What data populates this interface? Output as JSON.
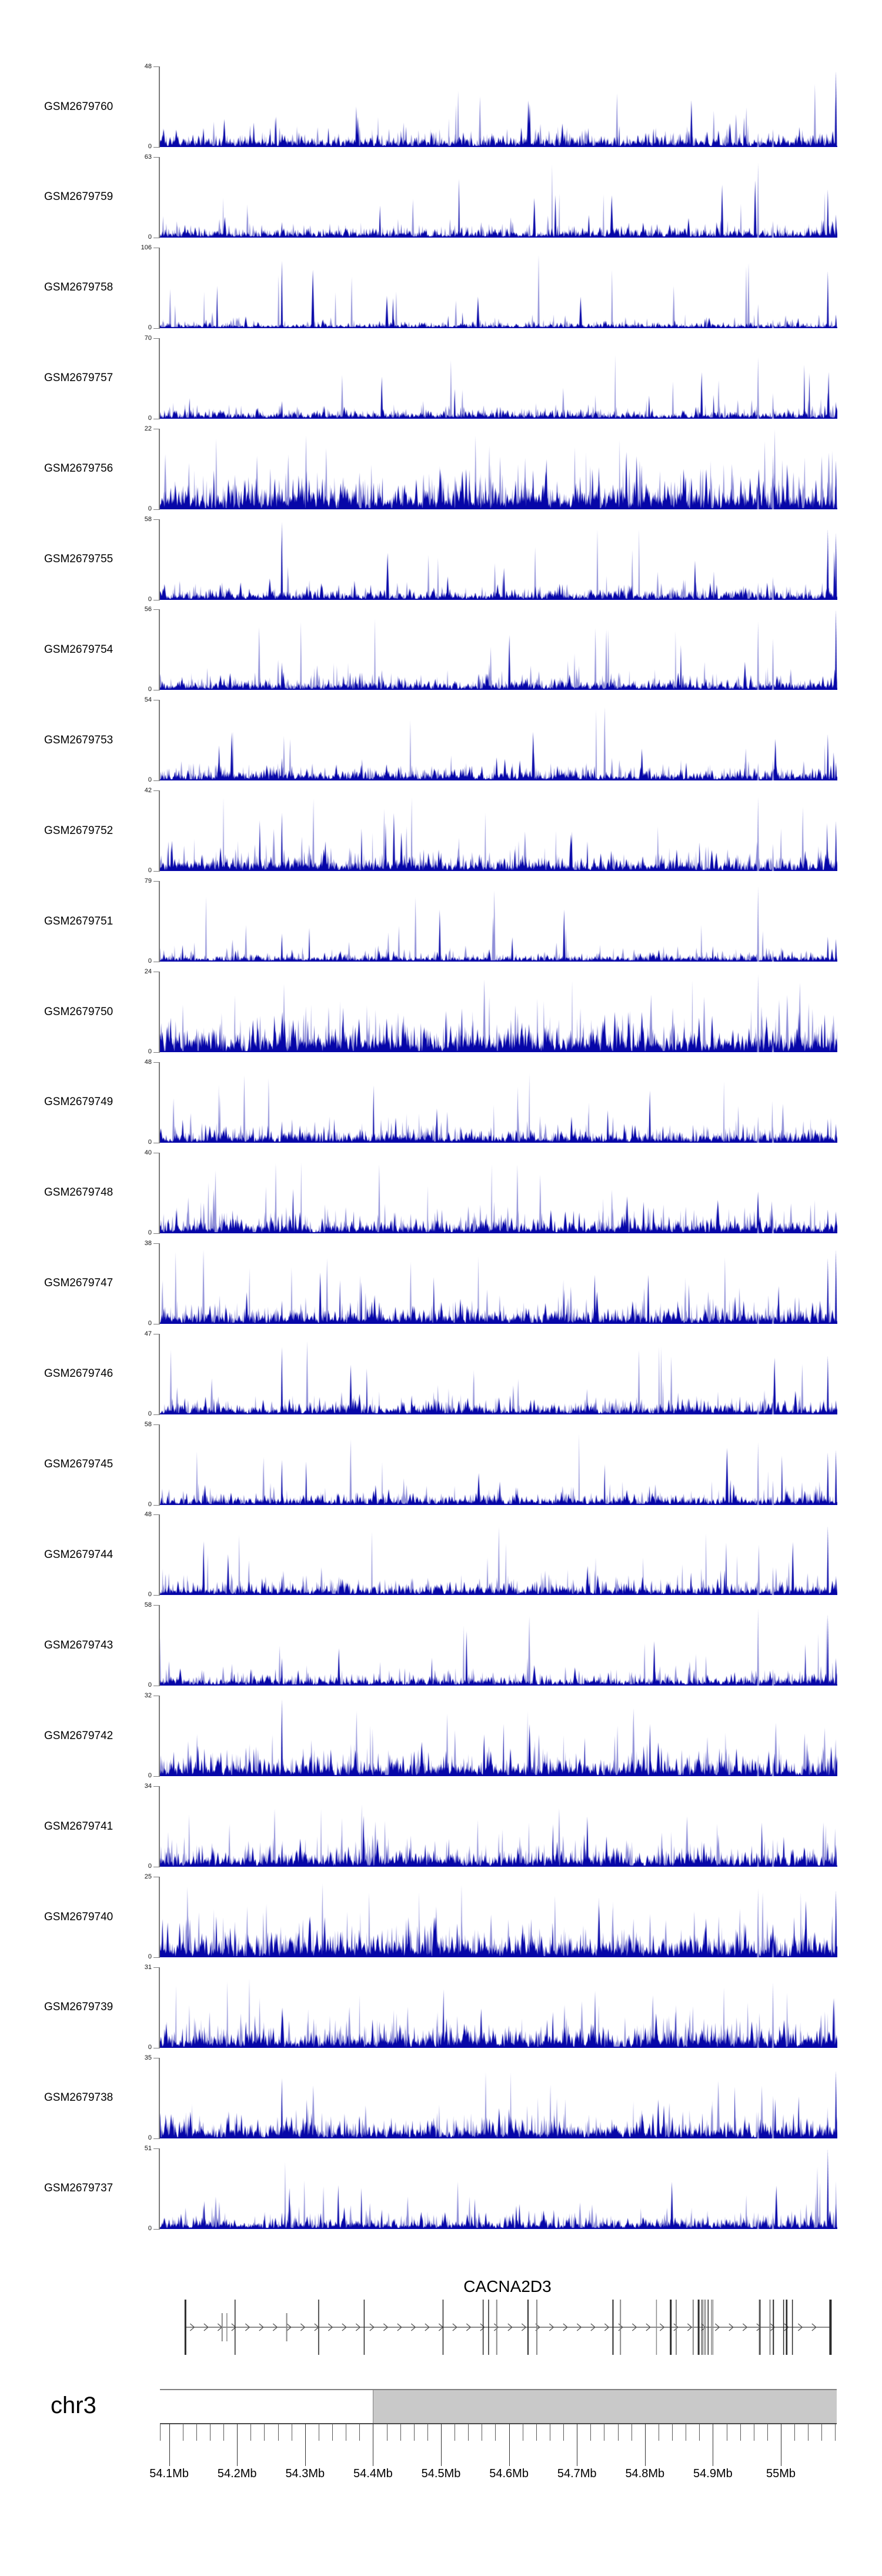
{
  "chart_data": {
    "type": "bar",
    "subtype": "genome-browser-coverage-tracks",
    "chromosome": "chr3",
    "x_units": "Mb",
    "x_range_mb": [
      54.0865,
      55.0822
    ],
    "zero_label": "0",
    "tracks": [
      {
        "label": "GSM2679760",
        "ymax": 48,
        "seed": 101
      },
      {
        "label": "GSM2679759",
        "ymax": 63,
        "seed": 102
      },
      {
        "label": "GSM2679758",
        "ymax": 106,
        "seed": 103
      },
      {
        "label": "GSM2679757",
        "ymax": 70,
        "seed": 104
      },
      {
        "label": "GSM2679756",
        "ymax": 22,
        "seed": 105
      },
      {
        "label": "GSM2679755",
        "ymax": 58,
        "seed": 106
      },
      {
        "label": "GSM2679754",
        "ymax": 56,
        "seed": 107
      },
      {
        "label": "GSM2679753",
        "ymax": 54,
        "seed": 108
      },
      {
        "label": "GSM2679752",
        "ymax": 42,
        "seed": 109
      },
      {
        "label": "GSM2679751",
        "ymax": 79,
        "seed": 110
      },
      {
        "label": "GSM2679750",
        "ymax": 24,
        "seed": 111
      },
      {
        "label": "GSM2679749",
        "ymax": 48,
        "seed": 112
      },
      {
        "label": "GSM2679748",
        "ymax": 40,
        "seed": 113
      },
      {
        "label": "GSM2679747",
        "ymax": 38,
        "seed": 114
      },
      {
        "label": "GSM2679746",
        "ymax": 47,
        "seed": 115
      },
      {
        "label": "GSM2679745",
        "ymax": 58,
        "seed": 116
      },
      {
        "label": "GSM2679744",
        "ymax": 48,
        "seed": 117
      },
      {
        "label": "GSM2679743",
        "ymax": 58,
        "seed": 118
      },
      {
        "label": "GSM2679742",
        "ymax": 32,
        "seed": 119
      },
      {
        "label": "GSM2679741",
        "ymax": 34,
        "seed": 120
      },
      {
        "label": "GSM2679740",
        "ymax": 25,
        "seed": 121
      },
      {
        "label": "GSM2679739",
        "ymax": 31,
        "seed": 122
      },
      {
        "label": "GSM2679738",
        "ymax": 35,
        "seed": 123
      },
      {
        "label": "GSM2679737",
        "ymax": 51,
        "seed": 124
      }
    ],
    "gene": {
      "name": "CACNA2D3",
      "strand": "+",
      "start_mb": 54.124,
      "end_mb": 55.073,
      "exons": [
        {
          "mb": 54.124,
          "size": "tall",
          "shade": "dark",
          "w": 3
        },
        {
          "mb": 54.178,
          "size": "med",
          "shade": "gray",
          "w": 2
        },
        {
          "mb": 54.185,
          "size": "med",
          "shade": "gray",
          "w": 1.5
        },
        {
          "mb": 54.197,
          "size": "tall",
          "shade": "dark",
          "w": 1.5
        },
        {
          "mb": 54.273,
          "size": "med",
          "shade": "gray",
          "w": 2
        },
        {
          "mb": 54.32,
          "size": "tall",
          "shade": "mid",
          "w": 2
        },
        {
          "mb": 54.387,
          "size": "tall",
          "shade": "dark",
          "w": 1.5
        },
        {
          "mb": 54.503,
          "size": "tall",
          "shade": "dark",
          "w": 1.5
        },
        {
          "mb": 54.562,
          "size": "tall",
          "shade": "dark",
          "w": 1.5
        },
        {
          "mb": 54.57,
          "size": "tall",
          "shade": "dark",
          "w": 1.5
        },
        {
          "mb": 54.582,
          "size": "tall",
          "shade": "gray",
          "w": 2
        },
        {
          "mb": 54.628,
          "size": "tall",
          "shade": "dark",
          "w": 2
        },
        {
          "mb": 54.641,
          "size": "tall",
          "shade": "gray",
          "w": 2
        },
        {
          "mb": 54.753,
          "size": "tall",
          "shade": "dark",
          "w": 2
        },
        {
          "mb": 54.764,
          "size": "tall",
          "shade": "gray",
          "w": 2
        },
        {
          "mb": 54.817,
          "size": "tall",
          "shade": "gray",
          "w": 1.5
        },
        {
          "mb": 54.838,
          "size": "tall",
          "shade": "dark",
          "w": 3
        },
        {
          "mb": 54.846,
          "size": "tall",
          "shade": "gray",
          "w": 2
        },
        {
          "mb": 54.871,
          "size": "tall",
          "shade": "gray",
          "w": 2
        },
        {
          "mb": 54.879,
          "size": "tall",
          "shade": "dark",
          "w": 3
        },
        {
          "mb": 54.884,
          "size": "tall",
          "shade": "dark",
          "w": 1.5
        },
        {
          "mb": 54.887,
          "size": "tall",
          "shade": "gray",
          "w": 1.5
        },
        {
          "mb": 54.889,
          "size": "tall",
          "shade": "gray",
          "w": 1.5
        },
        {
          "mb": 54.893,
          "size": "tall",
          "shade": "dark",
          "w": 1.5
        },
        {
          "mb": 54.898,
          "size": "tall",
          "shade": "gray",
          "w": 1.5
        },
        {
          "mb": 54.9,
          "size": "tall",
          "shade": "gray",
          "w": 1.5
        },
        {
          "mb": 54.969,
          "size": "tall",
          "shade": "mid",
          "w": 3
        },
        {
          "mb": 54.984,
          "size": "tall",
          "shade": "gray",
          "w": 2
        },
        {
          "mb": 54.989,
          "size": "tall",
          "shade": "dark",
          "w": 2
        },
        {
          "mb": 55.004,
          "size": "tall",
          "shade": "dark",
          "w": 1.5
        },
        {
          "mb": 55.008,
          "size": "tall",
          "shade": "dark",
          "w": 1.5
        },
        {
          "mb": 55.009,
          "size": "tall",
          "shade": "dark",
          "w": 1.5
        },
        {
          "mb": 55.017,
          "size": "tall",
          "shade": "dark",
          "w": 1.5
        },
        {
          "mb": 55.073,
          "size": "tall",
          "shade": "dark",
          "w": 4
        }
      ]
    },
    "ideogram": {
      "chromosome_label": "chr3",
      "bar_start_mb": 54.0865,
      "bar_end_mb": 55.0822,
      "gray_from_mb": 54.4
    },
    "ruler": {
      "minor_step_mb": 0.02,
      "major_step_mb": 0.1,
      "major_values_mb": [
        54.1,
        54.2,
        54.3,
        54.4,
        54.5,
        54.6,
        54.7,
        54.8,
        54.9,
        55.0
      ],
      "major_labels": [
        "54.1Mb",
        "54.2Mb",
        "54.3Mb",
        "54.4Mb",
        "54.5Mb",
        "54.6Mb",
        "54.7Mb",
        "54.8Mb",
        "54.9Mb",
        "55Mb"
      ]
    },
    "legend": null,
    "grid": false
  },
  "render": {
    "signal_dark_color": "#0606a8",
    "signal_light_color": "#8f8fd8",
    "axis_color": "#7a7a7a",
    "exon_dark_color": "#2b2b2b",
    "exon_mid_color": "#555555",
    "exon_gray_color": "#8a8a8a",
    "gene_line_color": "#444444",
    "chevron_color": "#555555",
    "ideogram_gray": "#c9c9c9",
    "hotspots": [
      {
        "f": 0.18,
        "p": 0.35,
        "light": false
      },
      {
        "f": 0.883,
        "p": 0.3,
        "light": true
      },
      {
        "f": 0.905,
        "p": 0.3,
        "light": true
      },
      {
        "f": 0.986,
        "p": 0.5,
        "light": false
      },
      {
        "f": 0.998,
        "p": 0.45,
        "light": false
      }
    ]
  }
}
